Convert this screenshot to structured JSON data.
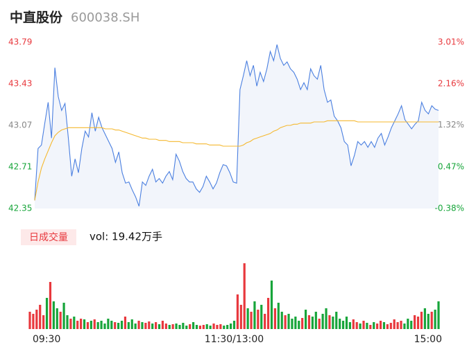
{
  "header": {
    "name": "中直股份",
    "code": "600038.SH"
  },
  "chart_data": [
    {
      "type": "line",
      "ylim": [
        42.35,
        43.79
      ],
      "yticks": [
        43.79,
        43.43,
        43.07,
        42.71,
        42.35
      ],
      "y2lim": [
        -0.38,
        3.01
      ],
      "y2ticks": [
        {
          "value": 3.01,
          "label": "3.01%"
        },
        {
          "value": 2.16,
          "label": "2.16%"
        },
        {
          "value": 1.32,
          "label": "1.32%"
        },
        {
          "value": 0.47,
          "label": "0.47%"
        },
        {
          "value": -0.38,
          "label": "-0.38%"
        }
      ],
      "up_color": "#e8383d",
      "down_color": "#17a53a",
      "mid_color": "#888888",
      "area_color": "#f2f5fb",
      "series": [
        {
          "color": "#4a7fe0",
          "values": [
            42.42,
            42.87,
            42.9,
            43.09,
            43.27,
            42.96,
            43.57,
            43.32,
            43.2,
            43.26,
            42.96,
            42.63,
            42.78,
            42.66,
            42.87,
            43.02,
            42.97,
            43.18,
            43.02,
            43.14,
            43.05,
            42.99,
            42.93,
            42.87,
            42.75,
            42.84,
            42.66,
            42.57,
            42.58,
            42.51,
            42.45,
            42.37,
            42.58,
            42.55,
            42.63,
            42.69,
            42.58,
            42.61,
            42.57,
            42.63,
            42.67,
            42.6,
            42.82,
            42.76,
            42.67,
            42.61,
            42.58,
            42.58,
            42.52,
            42.49,
            42.54,
            42.63,
            42.58,
            42.52,
            42.57,
            42.66,
            42.73,
            42.72,
            42.66,
            42.58,
            42.57,
            43.38,
            43.5,
            43.63,
            43.5,
            43.59,
            43.41,
            43.53,
            43.45,
            43.56,
            43.71,
            43.63,
            43.77,
            43.65,
            43.59,
            43.62,
            43.56,
            43.53,
            43.47,
            43.38,
            43.44,
            43.38,
            43.56,
            43.5,
            43.47,
            43.59,
            43.38,
            43.27,
            43.29,
            43.15,
            43.11,
            43.05,
            42.93,
            42.9,
            42.72,
            42.81,
            42.93,
            42.9,
            42.93,
            42.88,
            42.93,
            42.88,
            42.96,
            43.0,
            42.9,
            42.97,
            43.05,
            43.11,
            43.17,
            43.24,
            43.12,
            43.08,
            43.04,
            43.08,
            43.11,
            43.27,
            43.2,
            43.17,
            43.24,
            43.21,
            43.2
          ]
        },
        {
          "color": "#f5b82e",
          "values": [
            42.42,
            42.58,
            42.7,
            42.78,
            42.85,
            42.92,
            42.98,
            43.01,
            43.03,
            43.04,
            43.05,
            43.05,
            43.05,
            43.05,
            43.05,
            43.05,
            43.05,
            43.05,
            43.05,
            43.05,
            43.05,
            43.04,
            43.04,
            43.04,
            43.03,
            43.03,
            43.02,
            43.01,
            43.0,
            42.99,
            42.98,
            42.97,
            42.96,
            42.96,
            42.95,
            42.95,
            42.95,
            42.94,
            42.94,
            42.94,
            42.93,
            42.93,
            42.93,
            42.93,
            42.92,
            42.92,
            42.92,
            42.92,
            42.91,
            42.91,
            42.91,
            42.91,
            42.9,
            42.9,
            42.9,
            42.9,
            42.89,
            42.89,
            42.89,
            42.89,
            42.89,
            42.89,
            42.9,
            42.92,
            42.93,
            42.95,
            42.96,
            42.97,
            42.98,
            42.99,
            43.0,
            43.02,
            43.03,
            43.05,
            43.06,
            43.07,
            43.07,
            43.08,
            43.08,
            43.09,
            43.09,
            43.09,
            43.09,
            43.1,
            43.1,
            43.1,
            43.1,
            43.11,
            43.11,
            43.11,
            43.11,
            43.11,
            43.11,
            43.11,
            43.11,
            43.11,
            43.1,
            43.1,
            43.1,
            43.1,
            43.1,
            43.1,
            43.1,
            43.1,
            43.1,
            43.1,
            43.1,
            43.1,
            43.1,
            43.1,
            43.1,
            43.1,
            43.1,
            43.1,
            43.1,
            43.1,
            43.1,
            43.1,
            43.1,
            43.1,
            43.1
          ]
        }
      ]
    },
    {
      "type": "bar",
      "title": "日成交量",
      "subtitle": "vol: 19.42万手",
      "up_color": "#e8383d",
      "down_color": "#17a53a",
      "categories": [
        "09:30",
        null,
        null,
        null,
        null,
        null,
        null,
        null,
        null,
        null,
        null,
        null,
        null,
        null,
        null,
        null,
        null,
        null,
        null,
        null,
        null,
        null,
        null,
        null,
        null,
        null,
        null,
        null,
        null,
        null,
        null,
        null,
        null,
        null,
        null,
        null,
        null,
        null,
        null,
        null,
        null,
        null,
        null,
        null,
        null,
        null,
        null,
        null,
        null,
        null,
        null,
        null,
        null,
        null,
        null,
        null,
        null,
        null,
        null,
        null,
        "11:30/13:00",
        null,
        null,
        null,
        null,
        null,
        null,
        null,
        null,
        null,
        null,
        null,
        null,
        null,
        null,
        null,
        null,
        null,
        null,
        null,
        null,
        null,
        null,
        null,
        null,
        null,
        null,
        null,
        null,
        null,
        null,
        null,
        null,
        null,
        null,
        null,
        null,
        null,
        null,
        null,
        null,
        null,
        null,
        null,
        null,
        null,
        null,
        null,
        null,
        null,
        null,
        null,
        null,
        null,
        null,
        null,
        null,
        null,
        null,
        null,
        "15:00"
      ],
      "values": [
        2000,
        1760,
        2240,
        2800,
        1600,
        3600,
        5440,
        3200,
        2400,
        2000,
        3040,
        1600,
        1200,
        1440,
        960,
        1200,
        1120,
        800,
        960,
        1120,
        800,
        960,
        640,
        1200,
        960,
        800,
        720,
        960,
        1440,
        800,
        1120,
        640,
        960,
        800,
        720,
        880,
        640,
        800,
        560,
        960,
        640,
        480,
        560,
        640,
        480,
        720,
        400,
        560,
        800,
        480,
        400,
        480,
        560,
        400,
        640,
        480,
        560,
        400,
        480,
        640,
        960,
        4000,
        2800,
        7600,
        2400,
        2000,
        3200,
        2240,
        2800,
        1760,
        3600,
        5600,
        2400,
        3040,
        2000,
        1600,
        1760,
        1200,
        1440,
        960,
        1280,
        2240,
        1600,
        1440,
        2000,
        1200,
        1760,
        2400,
        1600,
        1440,
        2000,
        1200,
        960,
        1440,
        800,
        1120,
        800,
        640,
        960,
        720,
        480,
        800,
        640,
        960,
        800,
        560,
        720,
        1120,
        800,
        960,
        640,
        1200,
        960,
        1600,
        1440,
        2000,
        2400,
        1760,
        2000,
        2240,
        3200
      ]
    }
  ]
}
